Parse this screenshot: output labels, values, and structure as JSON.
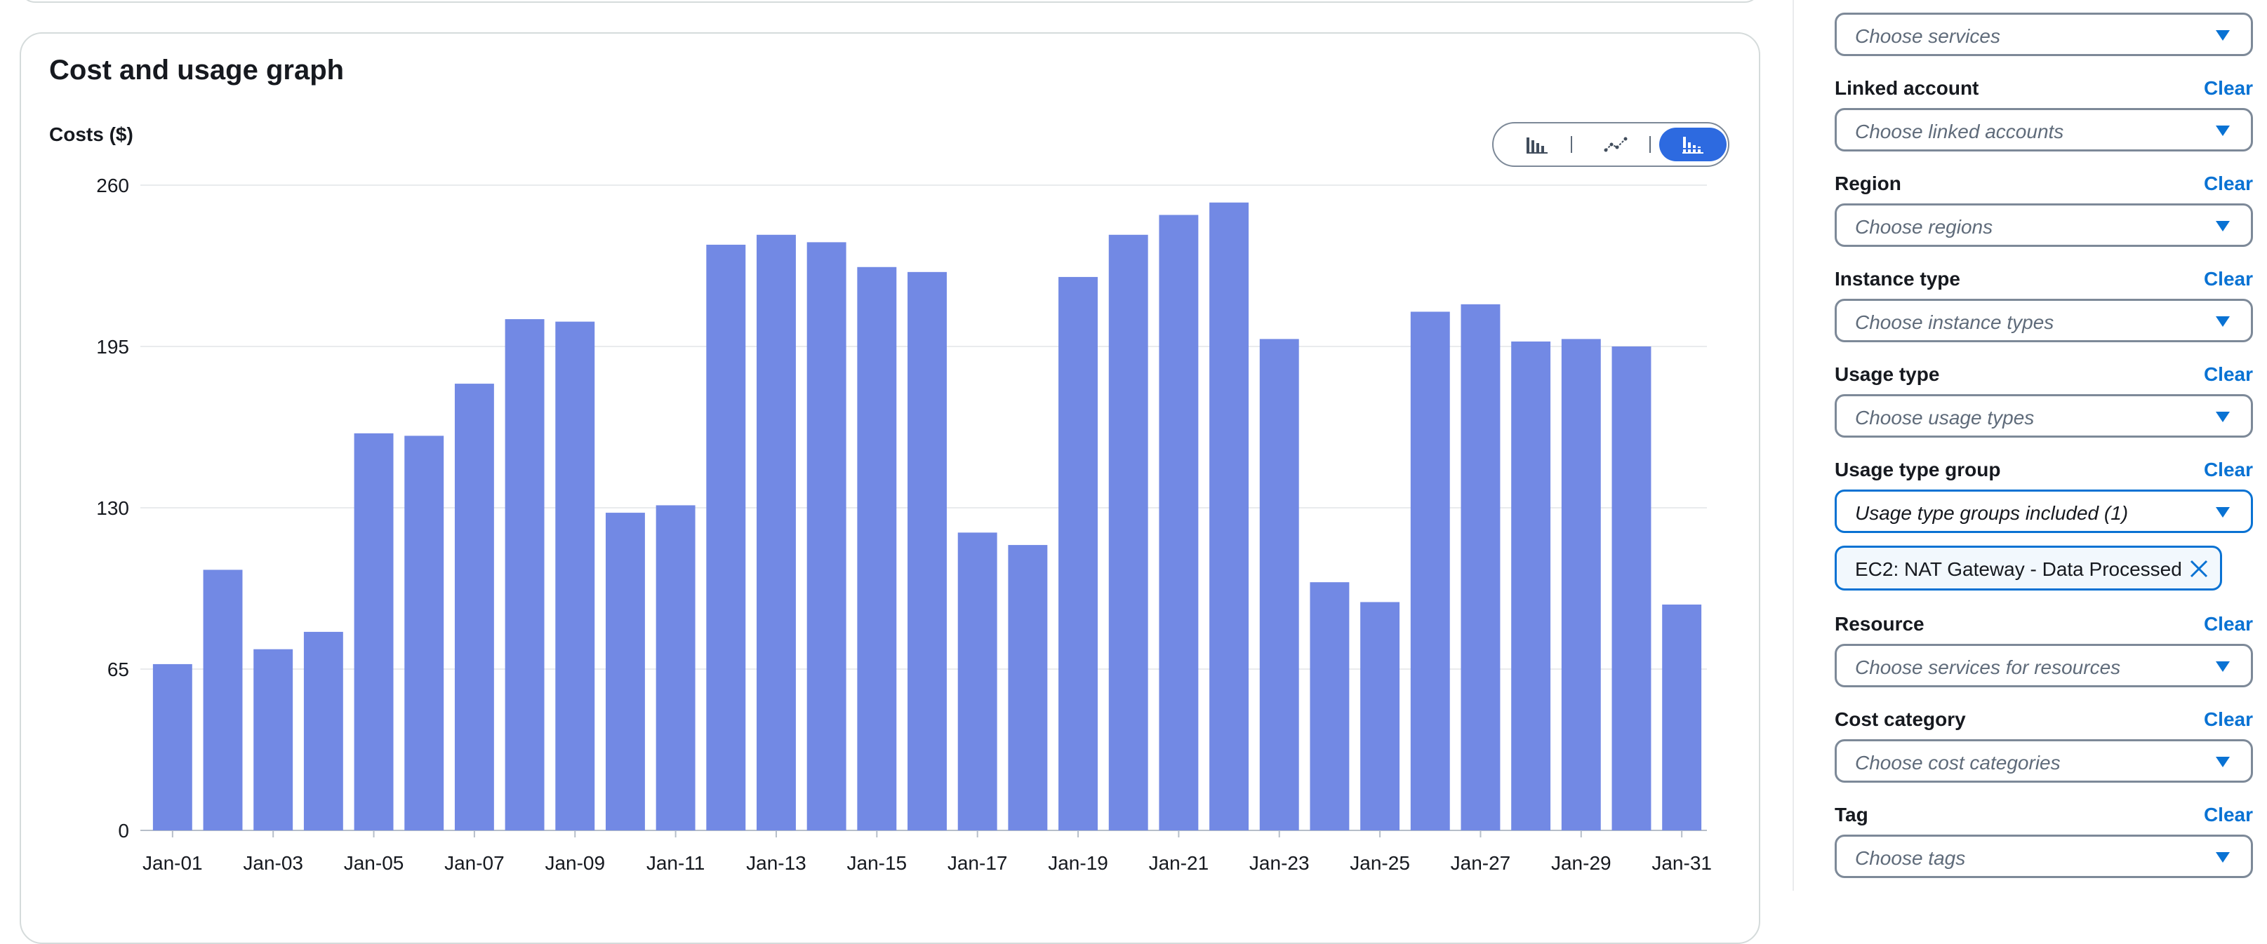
{
  "graph": {
    "title": "Cost and usage graph",
    "y_axis_title": "Costs ($)",
    "toggle": {
      "options": [
        {
          "name": "bar-chart-icon",
          "active": false
        },
        {
          "name": "line-chart-icon",
          "active": false
        },
        {
          "name": "stacked-bar-chart-icon",
          "active": true
        }
      ]
    }
  },
  "chart_data": {
    "type": "bar",
    "ylabel": "Costs ($)",
    "xlabel": "",
    "ylim": [
      0,
      260
    ],
    "yticks": [
      0,
      65,
      130,
      195,
      260
    ],
    "grid": true,
    "bar_color": "#7289e4",
    "categories": [
      "Jan-01",
      "Jan-02",
      "Jan-03",
      "Jan-04",
      "Jan-05",
      "Jan-06",
      "Jan-07",
      "Jan-08",
      "Jan-09",
      "Jan-10",
      "Jan-11",
      "Jan-12",
      "Jan-13",
      "Jan-14",
      "Jan-15",
      "Jan-16",
      "Jan-17",
      "Jan-18",
      "Jan-19",
      "Jan-20",
      "Jan-21",
      "Jan-22",
      "Jan-23",
      "Jan-24",
      "Jan-25",
      "Jan-26",
      "Jan-27",
      "Jan-28",
      "Jan-29",
      "Jan-30",
      "Jan-31"
    ],
    "x_tick_labels": [
      "Jan-01",
      "Jan-03",
      "Jan-05",
      "Jan-07",
      "Jan-09",
      "Jan-11",
      "Jan-13",
      "Jan-15",
      "Jan-17",
      "Jan-19",
      "Jan-21",
      "Jan-23",
      "Jan-25",
      "Jan-27",
      "Jan-29",
      "Jan-31"
    ],
    "values": [
      67,
      105,
      73,
      80,
      160,
      159,
      180,
      206,
      205,
      128,
      131,
      236,
      240,
      237,
      227,
      225,
      120,
      115,
      223,
      240,
      248,
      253,
      198,
      100,
      92,
      209,
      212,
      197,
      198,
      195,
      91
    ]
  },
  "filters": {
    "services": {
      "placeholder": "Choose services"
    },
    "linked_account": {
      "label": "Linked account",
      "clear": "Clear",
      "placeholder": "Choose linked accounts"
    },
    "region": {
      "label": "Region",
      "clear": "Clear",
      "placeholder": "Choose regions"
    },
    "instance_type": {
      "label": "Instance type",
      "clear": "Clear",
      "placeholder": "Choose instance types"
    },
    "usage_type": {
      "label": "Usage type",
      "clear": "Clear",
      "placeholder": "Choose usage types"
    },
    "usage_type_group": {
      "label": "Usage type group",
      "clear": "Clear",
      "value": "Usage type groups included (1)",
      "token": "EC2: NAT Gateway - Data Processed"
    },
    "resource": {
      "label": "Resource",
      "clear": "Clear",
      "placeholder": "Choose services for resources"
    },
    "cost_category": {
      "label": "Cost category",
      "clear": "Clear",
      "placeholder": "Choose cost categories"
    },
    "tag": {
      "label": "Tag",
      "clear": "Clear",
      "placeholder": "Choose tags"
    }
  },
  "colors": {
    "accent": "#0972d3",
    "toggle_active": "#2d6ae0",
    "bar": "#7289e4"
  }
}
